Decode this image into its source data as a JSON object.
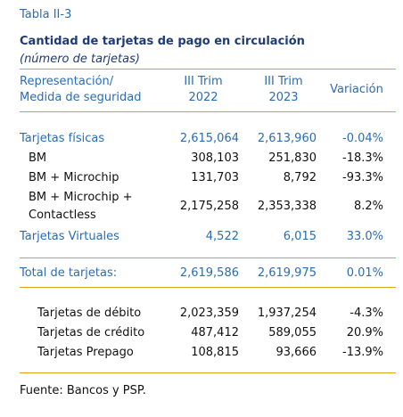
{
  "header": {
    "table_label": "Tabla II-3",
    "title": "Cantidad de tarjetas de pago en circulación",
    "subtitle": "(número de tarjetas)"
  },
  "table": {
    "columns": [
      [
        "Representación/",
        "Medida de seguridad"
      ],
      [
        "III Trim",
        "2022"
      ],
      [
        "III Trim",
        "2023"
      ],
      [
        "Variación"
      ]
    ],
    "rows": [
      {
        "label": [
          "Tarjetas físicas"
        ],
        "values": [
          "2,615,064",
          "2,613,960",
          "-0.04%"
        ]
      },
      {
        "label": [
          "BM"
        ],
        "values": [
          "308,103",
          "251,830",
          "-18.3%"
        ]
      },
      {
        "label": [
          "BM + Microchip"
        ],
        "values": [
          "131,703",
          "8,792",
          "-93.3%"
        ]
      },
      {
        "label": [
          "BM + Microchip +",
          "Contactless"
        ],
        "values": [
          "2,175,258",
          "2,353,338",
          "8.2%"
        ]
      },
      {
        "label": [
          "Tarjetas Virtuales"
        ],
        "values": [
          "4,522",
          "6,015",
          "33.0%"
        ]
      },
      {
        "label": [
          "Total de tarjetas:"
        ],
        "values": [
          "2,619,586",
          "2,619,975",
          "0.01%"
        ]
      },
      {
        "label": [
          "Tarjetas de débito"
        ],
        "values": [
          "2,023,359",
          "1,937,254",
          "-4.3%"
        ]
      },
      {
        "label": [
          "Tarjetas de crédito"
        ],
        "values": [
          "487,412",
          "589,055",
          "20.9%"
        ]
      },
      {
        "label": [
          "Tarjetas Prepago"
        ],
        "values": [
          "108,815",
          "93,666",
          "-13.9%"
        ]
      }
    ]
  },
  "footer": {
    "source": "Fuente: Bancos y PSP."
  }
}
